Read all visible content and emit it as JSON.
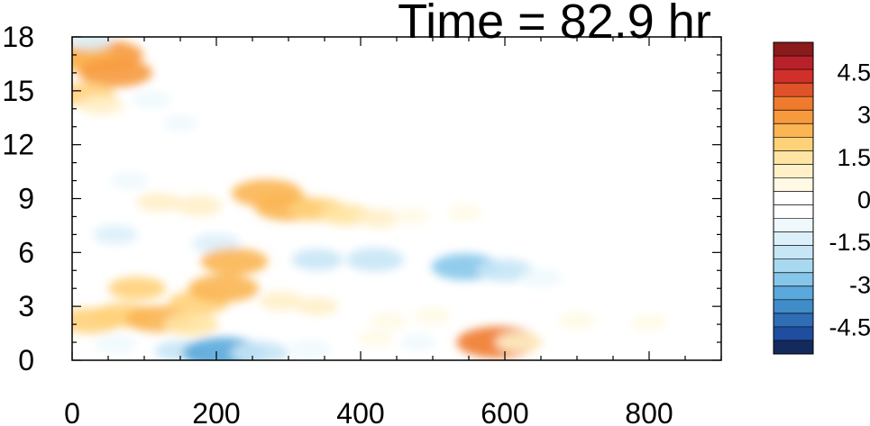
{
  "chart_data": {
    "type": "heatmap",
    "title": "Time = 82.9 hr",
    "xlabel": "",
    "ylabel": "",
    "xlim": [
      0,
      900
    ],
    "ylim": [
      0,
      18
    ],
    "x_ticks": [
      0,
      200,
      400,
      600,
      800
    ],
    "x_tick_labels": [
      "0",
      "200",
      "400",
      "600",
      "800"
    ],
    "y_ticks": [
      0,
      3,
      6,
      9,
      12,
      15,
      18
    ],
    "y_tick_labels": [
      "0",
      "3",
      "6",
      "9",
      "12",
      "15",
      "18"
    ],
    "grid": false,
    "legend": "right",
    "colorbar": {
      "levels": [
        -5.5,
        -5,
        -4.5,
        -4,
        -3.5,
        -3,
        -2.5,
        -2,
        -1.5,
        -1,
        -0.5,
        0,
        0.5,
        1,
        1.5,
        2,
        2.5,
        3,
        3.5,
        4,
        4.5,
        5,
        5.5
      ],
      "colors": [
        "#142a5c",
        "#1f4ea0",
        "#2f6db5",
        "#3f8cc8",
        "#5aa8dc",
        "#86c6ea",
        "#a9d8f1",
        "#c6e6f6",
        "#dcf0fa",
        "#eef8fd",
        "#ffffff",
        "#ffffff",
        "#fff9e6",
        "#fff0c8",
        "#ffe4a3",
        "#ffd27a",
        "#fbb552",
        "#f79a3e",
        "#f07a2e",
        "#e0522a",
        "#d1302a",
        "#b8212a",
        "#8b1a1a"
      ],
      "tick_values": [
        4.5,
        3,
        1.5,
        0,
        -1.5,
        -3,
        -4.5
      ],
      "tick_labels": [
        "4.5",
        "3",
        "1.5",
        "0",
        "-1.5",
        "-3",
        "-4.5"
      ]
    },
    "features": [
      {
        "x": 45,
        "y": 17.0,
        "value": 3.2
      },
      {
        "x": 15,
        "y": 16.8,
        "value": 2.5
      },
      {
        "x": 60,
        "y": 16.0,
        "value": 3.0
      },
      {
        "x": 25,
        "y": 17.8,
        "value": -1.2
      },
      {
        "x": 20,
        "y": 14.8,
        "value": 2.0
      },
      {
        "x": 40,
        "y": 14.2,
        "value": 1.2
      },
      {
        "x": 110,
        "y": 14.5,
        "value": -0.8
      },
      {
        "x": 150,
        "y": 13.2,
        "value": -0.6
      },
      {
        "x": 120,
        "y": 8.8,
        "value": 1.2
      },
      {
        "x": 80,
        "y": 10.0,
        "value": -0.8
      },
      {
        "x": 175,
        "y": 8.6,
        "value": 1.4
      },
      {
        "x": 60,
        "y": 7.0,
        "value": -1.2
      },
      {
        "x": 200,
        "y": 6.5,
        "value": -1.4
      },
      {
        "x": 270,
        "y": 9.3,
        "value": 2.8
      },
      {
        "x": 300,
        "y": 8.5,
        "value": 2.6
      },
      {
        "x": 340,
        "y": 8.4,
        "value": 2.0
      },
      {
        "x": 380,
        "y": 8.1,
        "value": 1.6
      },
      {
        "x": 425,
        "y": 7.9,
        "value": 1.2
      },
      {
        "x": 470,
        "y": 8.0,
        "value": 0.8
      },
      {
        "x": 545,
        "y": 8.2,
        "value": 0.6
      },
      {
        "x": 340,
        "y": 5.6,
        "value": -1.6
      },
      {
        "x": 420,
        "y": 5.6,
        "value": -2.0
      },
      {
        "x": 545,
        "y": 5.2,
        "value": -2.6
      },
      {
        "x": 600,
        "y": 5.0,
        "value": -1.9
      },
      {
        "x": 650,
        "y": 4.6,
        "value": -1.0
      },
      {
        "x": 720,
        "y": 7.6,
        "value": -0.4
      },
      {
        "x": 740,
        "y": 14.3,
        "value": -0.5
      },
      {
        "x": 680,
        "y": 15.2,
        "value": -0.4
      },
      {
        "x": 25,
        "y": 2.2,
        "value": 2.4
      },
      {
        "x": 70,
        "y": 2.5,
        "value": 2.2
      },
      {
        "x": 90,
        "y": 4.0,
        "value": 2.0
      },
      {
        "x": 120,
        "y": 2.3,
        "value": 2.6
      },
      {
        "x": 175,
        "y": 3.2,
        "value": 2.2
      },
      {
        "x": 210,
        "y": 4.0,
        "value": 2.8
      },
      {
        "x": 225,
        "y": 5.5,
        "value": 2.6
      },
      {
        "x": 165,
        "y": 2.0,
        "value": 1.8
      },
      {
        "x": 290,
        "y": 3.3,
        "value": 1.2
      },
      {
        "x": 340,
        "y": 3.0,
        "value": 1.0
      },
      {
        "x": 440,
        "y": 2.2,
        "value": 0.8
      },
      {
        "x": 500,
        "y": 2.5,
        "value": 0.8
      },
      {
        "x": 700,
        "y": 2.2,
        "value": 0.8
      },
      {
        "x": 800,
        "y": 2.1,
        "value": 0.7
      },
      {
        "x": 60,
        "y": 0.9,
        "value": -1.0
      },
      {
        "x": 150,
        "y": 0.5,
        "value": -1.6
      },
      {
        "x": 210,
        "y": 0.4,
        "value": -3.5
      },
      {
        "x": 260,
        "y": 0.4,
        "value": -2.0
      },
      {
        "x": 330,
        "y": 0.6,
        "value": -1.0
      },
      {
        "x": 590,
        "y": 1.0,
        "value": 3.5
      },
      {
        "x": 620,
        "y": 1.0,
        "value": 1.4
      },
      {
        "x": 480,
        "y": 1.0,
        "value": -0.6
      },
      {
        "x": 420,
        "y": 1.2,
        "value": 0.7
      }
    ]
  }
}
